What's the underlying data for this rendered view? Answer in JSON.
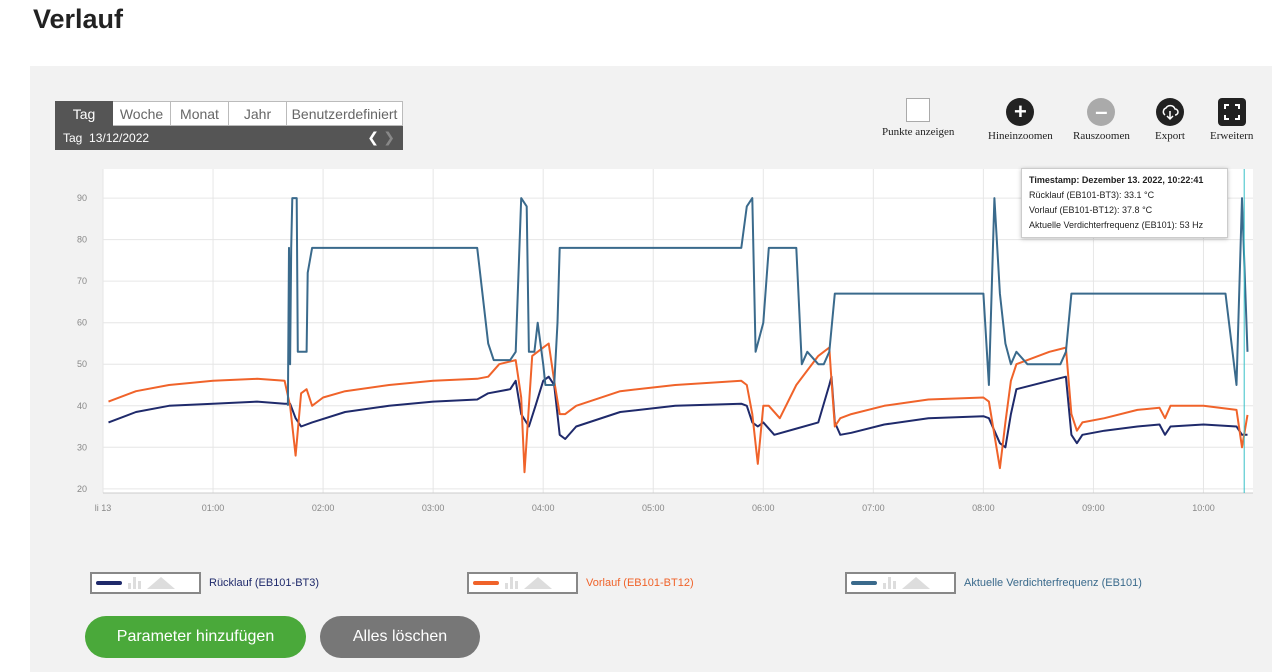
{
  "page": {
    "title": "Verlauf"
  },
  "range": {
    "tabs": [
      {
        "label": "Tag",
        "active": true
      },
      {
        "label": "Woche",
        "active": false
      },
      {
        "label": "Monat",
        "active": false
      },
      {
        "label": "Jahr",
        "active": false
      },
      {
        "label": "Benutzerdefiniert",
        "active": false
      }
    ],
    "current_label": "Tag  13/12/2022",
    "prev_icon": "chevron-left",
    "next_icon": "chevron-right"
  },
  "tools": {
    "points": {
      "label": "Punkte anzeigen",
      "icon": "checkbox-icon"
    },
    "zoom_in": {
      "label": "Hineinzoomen",
      "icon": "plus-icon"
    },
    "zoom_out": {
      "label": "Rauszoomen",
      "icon": "minus-icon"
    },
    "export": {
      "label": "Export",
      "icon": "cloud-download-icon"
    },
    "expand": {
      "label": "Erweitern",
      "icon": "fullscreen-icon"
    }
  },
  "tooltip": {
    "title": "Timestamp: Dezember 13. 2022, 10:22:41",
    "lines": [
      "Rücklauf (EB101-BT3): 33.1 °C",
      "Vorlauf (EB101-BT12): 37.8 °C",
      "Aktuelle Verdichterfrequenz (EB101): 53 Hz"
    ]
  },
  "legend": [
    {
      "label": "Rücklauf (EB101-BT3)",
      "color": "#1f2a6b"
    },
    {
      "label": "Vorlauf (EB101-BT12)",
      "color": "#f0632a"
    },
    {
      "label": "Aktuelle Verdichterfrequenz (EB101)",
      "color": "#3a6a8c"
    }
  ],
  "buttons": {
    "add": "Parameter hinzufügen",
    "clear": "Alles löschen"
  },
  "chart_data": {
    "type": "line",
    "title": "",
    "xlabel": "",
    "ylabel": "",
    "xlim": [
      0,
      10.45
    ],
    "ylim": [
      19,
      97
    ],
    "x_ticks": [
      {
        "value": 0,
        "label": "li 13"
      },
      {
        "value": 1,
        "label": "01:00"
      },
      {
        "value": 2,
        "label": "02:00"
      },
      {
        "value": 3,
        "label": "03:00"
      },
      {
        "value": 4,
        "label": "04:00"
      },
      {
        "value": 5,
        "label": "05:00"
      },
      {
        "value": 6,
        "label": "06:00"
      },
      {
        "value": 7,
        "label": "07:00"
      },
      {
        "value": 8,
        "label": "08:00"
      },
      {
        "value": 9,
        "label": "09:00"
      },
      {
        "value": 10,
        "label": "10:00"
      }
    ],
    "y_ticks": [
      20,
      30,
      40,
      50,
      60,
      70,
      80,
      90
    ],
    "cursor_x": 10.37,
    "grid": true,
    "series": [
      {
        "name": "Rücklauf (EB101-BT3)",
        "color": "#1f2a6b",
        "points": [
          [
            0.05,
            36
          ],
          [
            0.3,
            38.5
          ],
          [
            0.6,
            40
          ],
          [
            1.0,
            40.5
          ],
          [
            1.4,
            41
          ],
          [
            1.65,
            40.5
          ],
          [
            1.7,
            40.5
          ],
          [
            1.75,
            37
          ],
          [
            1.8,
            35
          ],
          [
            1.9,
            36
          ],
          [
            2.2,
            38.5
          ],
          [
            2.6,
            40
          ],
          [
            3.0,
            41
          ],
          [
            3.4,
            41.5
          ],
          [
            3.5,
            43
          ],
          [
            3.7,
            44
          ],
          [
            3.75,
            46
          ],
          [
            3.8,
            38
          ],
          [
            3.87,
            35
          ],
          [
            3.93,
            40
          ],
          [
            4.0,
            46
          ],
          [
            4.05,
            47
          ],
          [
            4.1,
            45
          ],
          [
            4.15,
            33
          ],
          [
            4.2,
            32
          ],
          [
            4.3,
            35
          ],
          [
            4.7,
            38.5
          ],
          [
            5.2,
            40
          ],
          [
            5.8,
            40.5
          ],
          [
            5.85,
            40
          ],
          [
            5.9,
            36
          ],
          [
            5.95,
            35
          ],
          [
            6.0,
            36
          ],
          [
            6.1,
            33
          ],
          [
            6.3,
            34.5
          ],
          [
            6.5,
            36
          ],
          [
            6.6,
            45
          ],
          [
            6.62,
            47
          ],
          [
            6.65,
            36
          ],
          [
            6.7,
            33
          ],
          [
            6.8,
            33.5
          ],
          [
            7.1,
            35.5
          ],
          [
            7.5,
            37
          ],
          [
            8.0,
            37.5
          ],
          [
            8.05,
            37
          ],
          [
            8.15,
            31
          ],
          [
            8.2,
            30
          ],
          [
            8.25,
            38
          ],
          [
            8.3,
            44
          ],
          [
            8.6,
            46
          ],
          [
            8.75,
            47
          ],
          [
            8.8,
            33
          ],
          [
            8.85,
            31
          ],
          [
            8.9,
            33
          ],
          [
            9.1,
            34
          ],
          [
            9.4,
            35
          ],
          [
            9.6,
            35.5
          ],
          [
            9.65,
            33
          ],
          [
            9.7,
            35
          ],
          [
            10.0,
            35.5
          ],
          [
            10.3,
            35
          ],
          [
            10.35,
            33
          ],
          [
            10.4,
            33
          ]
        ]
      },
      {
        "name": "Vorlauf (EB101-BT12)",
        "color": "#f0632a",
        "points": [
          [
            0.05,
            41
          ],
          [
            0.3,
            43.5
          ],
          [
            0.6,
            45
          ],
          [
            1.0,
            46
          ],
          [
            1.4,
            46.5
          ],
          [
            1.65,
            46
          ],
          [
            1.7,
            40
          ],
          [
            1.75,
            28
          ],
          [
            1.8,
            43
          ],
          [
            1.85,
            44
          ],
          [
            1.9,
            40
          ],
          [
            2.0,
            42
          ],
          [
            2.2,
            43.5
          ],
          [
            2.6,
            45
          ],
          [
            3.0,
            46
          ],
          [
            3.4,
            46.5
          ],
          [
            3.5,
            47
          ],
          [
            3.6,
            50
          ],
          [
            3.75,
            51
          ],
          [
            3.8,
            42
          ],
          [
            3.83,
            24
          ],
          [
            3.87,
            40
          ],
          [
            3.9,
            52
          ],
          [
            4.0,
            54
          ],
          [
            4.05,
            55
          ],
          [
            4.1,
            46
          ],
          [
            4.15,
            38
          ],
          [
            4.2,
            38
          ],
          [
            4.3,
            40
          ],
          [
            4.7,
            43.5
          ],
          [
            5.2,
            45
          ],
          [
            5.8,
            46
          ],
          [
            5.85,
            45
          ],
          [
            5.9,
            38
          ],
          [
            5.95,
            26
          ],
          [
            6.0,
            40
          ],
          [
            6.05,
            40
          ],
          [
            6.15,
            37
          ],
          [
            6.3,
            45
          ],
          [
            6.5,
            52
          ],
          [
            6.6,
            54
          ],
          [
            6.62,
            46
          ],
          [
            6.65,
            35
          ],
          [
            6.7,
            37
          ],
          [
            6.8,
            38
          ],
          [
            7.1,
            40
          ],
          [
            7.5,
            41.5
          ],
          [
            8.0,
            42
          ],
          [
            8.05,
            41
          ],
          [
            8.15,
            25
          ],
          [
            8.2,
            36
          ],
          [
            8.25,
            46
          ],
          [
            8.3,
            50
          ],
          [
            8.6,
            53
          ],
          [
            8.75,
            54
          ],
          [
            8.8,
            38
          ],
          [
            8.85,
            34
          ],
          [
            8.9,
            36
          ],
          [
            9.1,
            37
          ],
          [
            9.4,
            39
          ],
          [
            9.6,
            39.5
          ],
          [
            9.65,
            37
          ],
          [
            9.7,
            40
          ],
          [
            10.0,
            40
          ],
          [
            10.3,
            39
          ],
          [
            10.35,
            30
          ],
          [
            10.4,
            37.8
          ]
        ]
      },
      {
        "name": "Aktuelle Verdichterfrequenz (EB101)",
        "color": "#3a6a8c",
        "points": [
          [
            1.68,
            40
          ],
          [
            1.69,
            78
          ],
          [
            1.7,
            50
          ],
          [
            1.71,
            78
          ],
          [
            1.72,
            90
          ],
          [
            1.76,
            90
          ],
          [
            1.77,
            53
          ],
          [
            1.85,
            53
          ],
          [
            1.86,
            72
          ],
          [
            1.9,
            78
          ],
          [
            3.4,
            78
          ],
          [
            3.5,
            55
          ],
          [
            3.55,
            51
          ],
          [
            3.7,
            51
          ],
          [
            3.75,
            53
          ],
          [
            3.8,
            90
          ],
          [
            3.85,
            88
          ],
          [
            3.87,
            53
          ],
          [
            3.92,
            53
          ],
          [
            3.95,
            60
          ],
          [
            4.0,
            50
          ],
          [
            4.02,
            45
          ],
          [
            4.1,
            45
          ],
          [
            4.13,
            60
          ],
          [
            4.15,
            78
          ],
          [
            5.8,
            78
          ],
          [
            5.85,
            88
          ],
          [
            5.9,
            90
          ],
          [
            5.93,
            53
          ],
          [
            6.0,
            60
          ],
          [
            6.05,
            78
          ],
          [
            6.3,
            78
          ],
          [
            6.35,
            50
          ],
          [
            6.4,
            53
          ],
          [
            6.5,
            50
          ],
          [
            6.55,
            50
          ],
          [
            6.6,
            53
          ],
          [
            6.65,
            67
          ],
          [
            8.0,
            67
          ],
          [
            8.05,
            45
          ],
          [
            8.1,
            90
          ],
          [
            8.15,
            67
          ],
          [
            8.2,
            55
          ],
          [
            8.25,
            50
          ],
          [
            8.3,
            53
          ],
          [
            8.4,
            50
          ],
          [
            8.45,
            50
          ],
          [
            8.7,
            50
          ],
          [
            8.75,
            53
          ],
          [
            8.8,
            67
          ],
          [
            10.2,
            67
          ],
          [
            10.3,
            45
          ],
          [
            10.35,
            90
          ],
          [
            10.4,
            53
          ]
        ]
      }
    ]
  }
}
